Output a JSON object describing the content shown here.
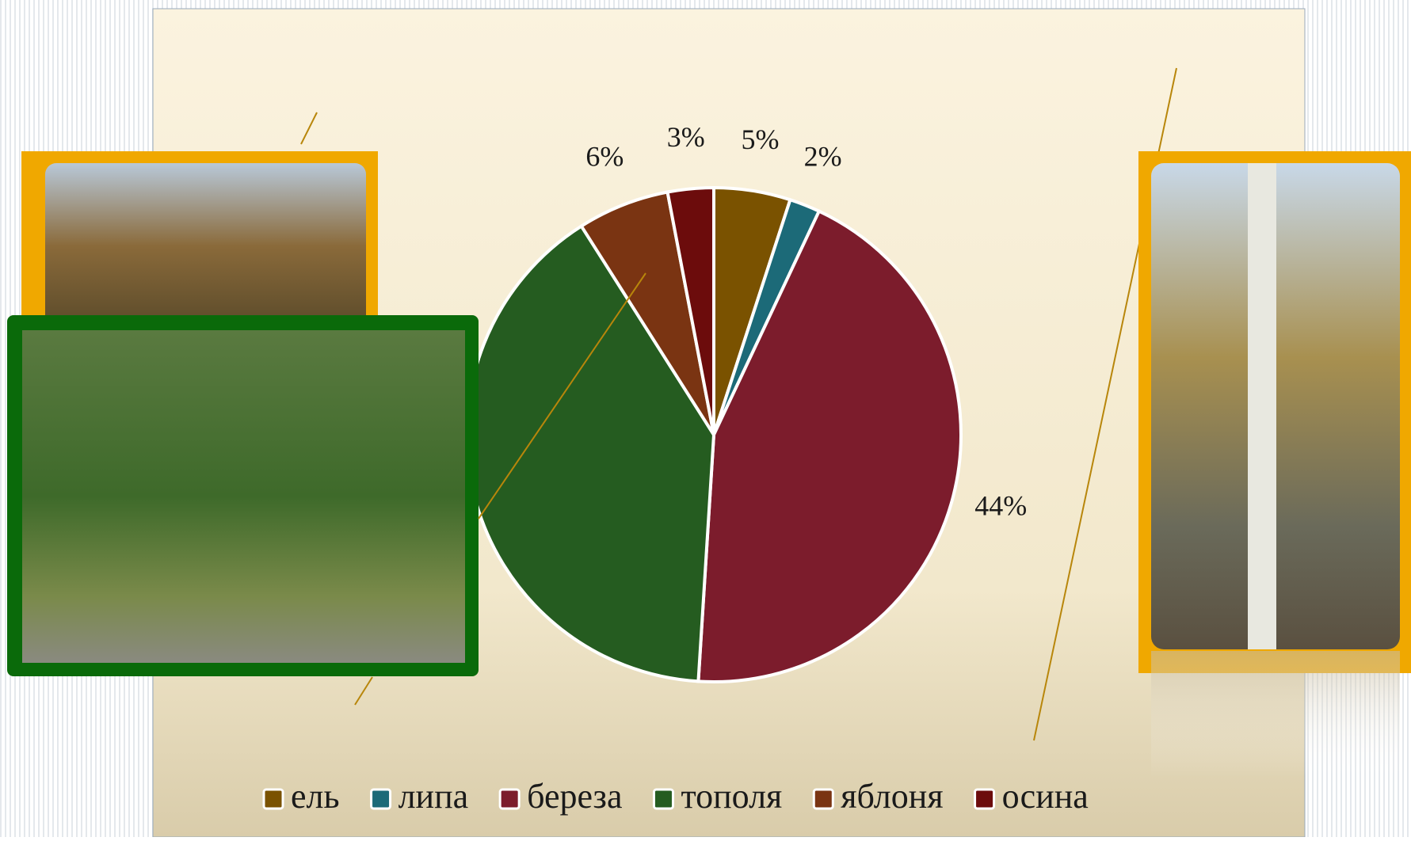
{
  "chart_data": {
    "type": "pie",
    "categories": [
      "ель",
      "липа",
      "береза",
      "тополя",
      "яблоня",
      "осина"
    ],
    "values": [
      5,
      2,
      44,
      40,
      6,
      3
    ],
    "value_labels": [
      "5%",
      "2%",
      "44%",
      null,
      "6%",
      "3%"
    ],
    "colors": [
      "#7a5200",
      "#1c6a78",
      "#7c1c2c",
      "#255c20",
      "#7a3412",
      "#6c0c0c"
    ],
    "legend": "bottom"
  }
}
